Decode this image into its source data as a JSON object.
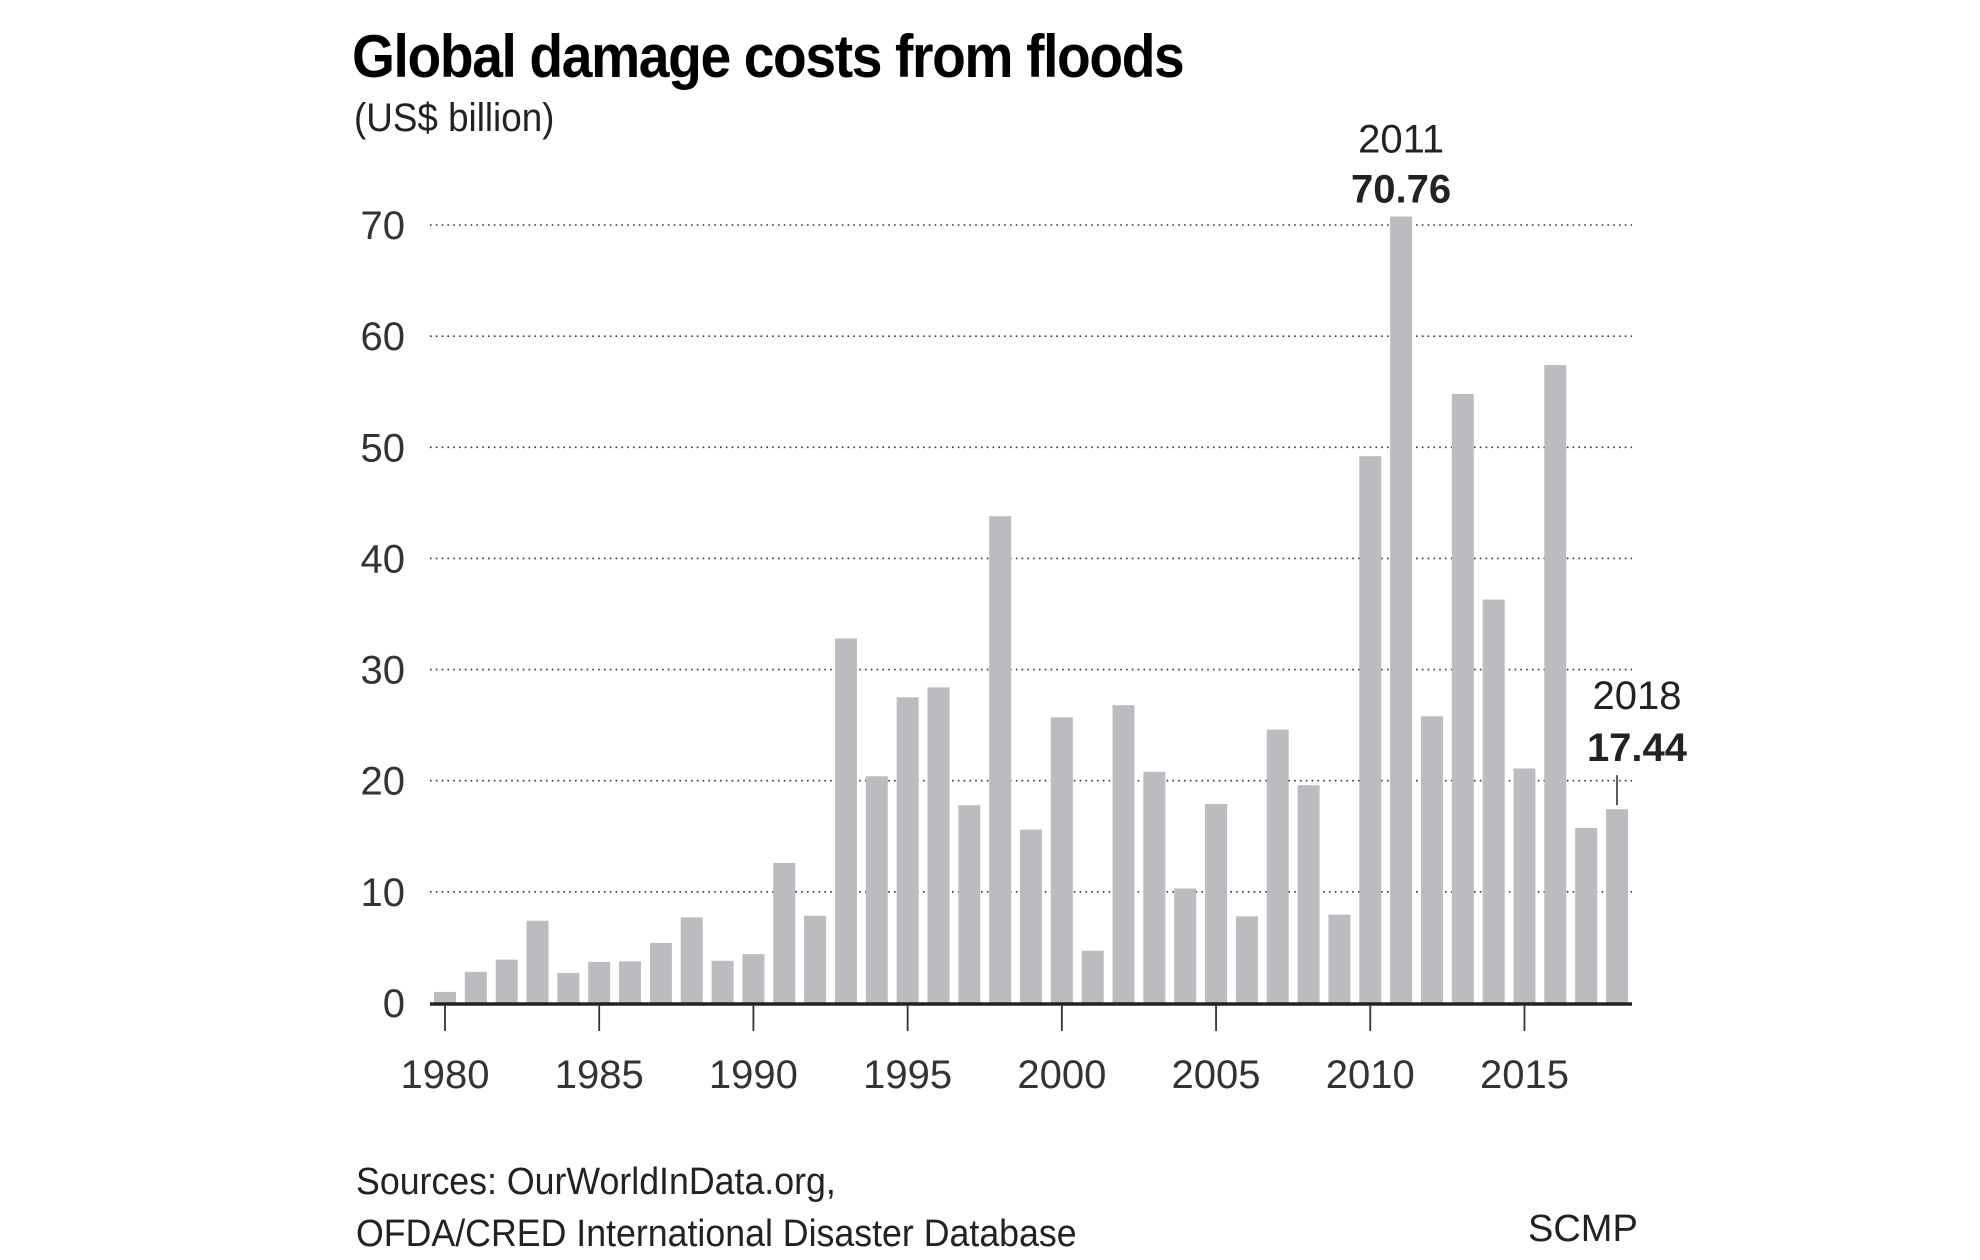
{
  "chart_data": {
    "type": "bar",
    "title": "Global damage costs from floods",
    "subtitle": "(US$ billion)",
    "xlabel": "",
    "ylabel": "US$ billion",
    "ylim": [
      0,
      70
    ],
    "yticks": [
      0,
      10,
      20,
      30,
      40,
      50,
      60,
      70
    ],
    "xticks": [
      1980,
      1985,
      1990,
      1995,
      2000,
      2005,
      2010,
      2015
    ],
    "grid": "horizontal dotted",
    "categories": [
      1980,
      1981,
      1982,
      1983,
      1984,
      1985,
      1986,
      1987,
      1988,
      1989,
      1990,
      1991,
      1992,
      1993,
      1994,
      1995,
      1996,
      1997,
      1998,
      1999,
      2000,
      2001,
      2002,
      2003,
      2004,
      2005,
      2006,
      2007,
      2008,
      2009,
      2010,
      2011,
      2012,
      2013,
      2014,
      2015,
      2016,
      2017,
      2018
    ],
    "values": [
      1.0,
      2.8,
      3.9,
      7.4,
      2.7,
      3.7,
      3.75,
      5.4,
      7.7,
      3.8,
      4.4,
      12.6,
      7.85,
      32.8,
      20.4,
      27.5,
      28.4,
      17.8,
      43.8,
      15.6,
      25.7,
      4.7,
      26.8,
      20.8,
      10.3,
      17.9,
      7.8,
      24.6,
      19.6,
      7.95,
      49.2,
      70.76,
      25.8,
      54.8,
      36.3,
      21.1,
      57.4,
      15.75,
      17.44
    ],
    "bar_color": "#bbbcbf",
    "annotations": [
      {
        "year_label": "2011",
        "value_label": "70.76",
        "category": 2011
      },
      {
        "year_label": "2018",
        "value_label": "17.44",
        "category": 2018
      }
    ]
  },
  "footer": {
    "source_line1": "Sources: OurWorldInData.org,",
    "source_line2": "OFDA/CRED International Disaster Database",
    "credit": "SCMP"
  }
}
